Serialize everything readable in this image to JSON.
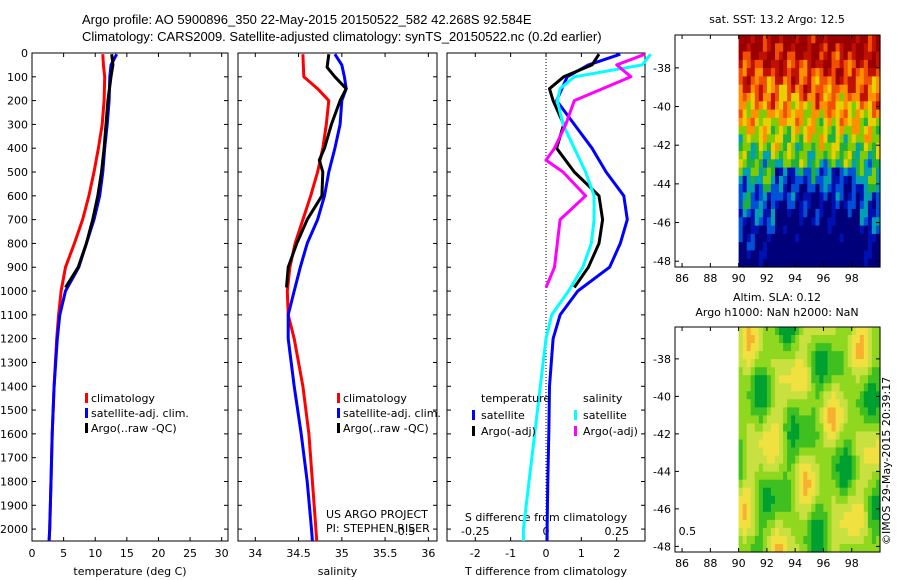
{
  "header": {
    "line1": "Argo profile: AO 5900896_350 22-May-2015 20150522_582 42.268S 92.584E",
    "line2": "Climatology: CARS2009. Satellite-adjusted climatology: synTS_20150522.nc (0.2d earlier)"
  },
  "colors": {
    "climatology": "#ff0000",
    "satellite": "#0000ff",
    "argo": "#000000",
    "argo_s": "#ff00ff",
    "satellite_s": "#00ffff"
  },
  "chart_data": [
    {
      "type": "line",
      "name": "temperature",
      "xlabel": "temperature (deg C)",
      "ylabel": "",
      "xlim": [
        0,
        31
      ],
      "ylim": [
        2050,
        0
      ],
      "xticks": [
        0,
        5,
        10,
        15,
        20,
        25,
        30
      ],
      "yticks": [
        0,
        100,
        200,
        300,
        400,
        500,
        600,
        700,
        800,
        900,
        1000,
        1100,
        1200,
        1300,
        1400,
        1500,
        1600,
        1700,
        1800,
        1900,
        2000
      ],
      "legend": [
        "climatology",
        "satellite-adj. clim.",
        "Argo(..raw -QC)"
      ],
      "series": [
        {
          "name": "climatology",
          "color": "red",
          "depth": [
            5,
            50,
            100,
            200,
            300,
            400,
            500,
            600,
            700,
            800,
            900,
            1000,
            1100,
            1200,
            1400,
            1600,
            1800,
            2000,
            2050
          ],
          "values": [
            11.2,
            11.3,
            11.5,
            11.4,
            11.1,
            10.5,
            9.8,
            9.0,
            8.0,
            6.7,
            5.3,
            4.6,
            4.2,
            3.9,
            3.5,
            3.2,
            3.0,
            2.8,
            2.7
          ]
        },
        {
          "name": "satellite-adj. clim.",
          "color": "blue",
          "depth": [
            5,
            50,
            100,
            200,
            300,
            400,
            500,
            600,
            700,
            800,
            900,
            1000,
            1100,
            1200,
            1400,
            1600,
            1800,
            2000,
            2050
          ],
          "values": [
            13.4,
            12.5,
            12.3,
            12.2,
            11.9,
            11.5,
            11.2,
            10.7,
            9.8,
            8.6,
            7.4,
            5.3,
            4.4,
            4.0,
            3.5,
            3.2,
            3.0,
            2.8,
            2.7
          ]
        },
        {
          "name": "Argo(..raw -QC)",
          "color": "black",
          "depth": [
            5,
            50,
            100,
            200,
            300,
            400,
            500,
            600,
            700,
            800,
            900,
            985
          ],
          "values": [
            12.6,
            12.8,
            12.5,
            12.0,
            11.7,
            11.4,
            11.0,
            10.4,
            9.6,
            8.6,
            7.3,
            5.3
          ]
        }
      ]
    },
    {
      "type": "line",
      "name": "salinity",
      "xlabel": "salinity",
      "ylabel": "",
      "xlim": [
        33.8,
        36.1
      ],
      "ylim": [
        2050,
        0
      ],
      "xticks": [
        34,
        34.5,
        35,
        35.5,
        36
      ],
      "legend": [
        "climatology",
        "satellite-adj. clim.",
        "Argo(..raw -QC)"
      ],
      "series": [
        {
          "name": "climatology",
          "color": "red",
          "depth": [
            5,
            100,
            150,
            200,
            300,
            400,
            500,
            600,
            700,
            800,
            900,
            1000,
            1100,
            1200,
            1400,
            1600,
            1800,
            2000,
            2050
          ],
          "values": [
            34.55,
            34.56,
            34.72,
            34.85,
            34.82,
            34.78,
            34.72,
            34.64,
            34.55,
            34.46,
            34.4,
            34.37,
            34.38,
            34.45,
            34.55,
            34.62,
            34.66,
            34.7,
            34.71
          ]
        },
        {
          "name": "satellite-adj. clim.",
          "color": "blue",
          "depth": [
            5,
            50,
            100,
            150,
            200,
            300,
            400,
            500,
            600,
            700,
            800,
            900,
            1000,
            1100,
            1200,
            1400,
            1600,
            1800,
            2000,
            2050
          ],
          "values": [
            34.92,
            35.0,
            35.03,
            35.05,
            35.0,
            34.98,
            34.92,
            34.85,
            34.8,
            34.72,
            34.6,
            34.52,
            34.45,
            34.38,
            34.38,
            34.45,
            34.53,
            34.6,
            34.65,
            34.66
          ]
        },
        {
          "name": "Argo(..raw -QC)",
          "color": "black",
          "depth": [
            5,
            60,
            100,
            150,
            200,
            300,
            400,
            450,
            500,
            600,
            700,
            800,
            900,
            985
          ],
          "values": [
            34.85,
            34.83,
            34.92,
            35.05,
            34.98,
            34.88,
            34.8,
            34.74,
            34.78,
            34.77,
            34.6,
            34.48,
            34.38,
            34.36
          ]
        }
      ]
    },
    {
      "type": "line",
      "name": "difference from climatology",
      "xlabel": "T difference from climatology",
      "x2label": "S difference from climatology",
      "xlim": [
        -2.8,
        2.8
      ],
      "ylim": [
        2050,
        0
      ],
      "xticks": [
        -2,
        -1,
        0,
        1,
        2
      ],
      "x2ticks": [
        -0.5,
        -0.25,
        0,
        0.25,
        0.5
      ],
      "legend_groups": [
        "temperature",
        "salinity"
      ],
      "legend": [
        "satellite",
        "Argo(-adj)",
        "satellite",
        "Argo(-adj)"
      ],
      "series": [
        {
          "name": "temperature satellite",
          "color": "blue",
          "depth": [
            5,
            50,
            100,
            200,
            300,
            400,
            500,
            600,
            700,
            800,
            900,
            1000,
            1100,
            1200,
            1400,
            1600,
            1800,
            2000,
            2050
          ],
          "values": [
            2.1,
            1.2,
            0.6,
            0.3,
            0.8,
            1.3,
            1.7,
            2.2,
            2.3,
            2.1,
            1.8,
            0.9,
            0.4,
            0.2,
            0.1,
            0.08,
            0.05,
            0.03,
            0.03
          ]
        },
        {
          "name": "temperature Argo(-adj)",
          "color": "black",
          "depth": [
            5,
            50,
            100,
            150,
            200,
            300,
            400,
            500,
            600,
            700,
            800,
            900,
            985
          ],
          "values": [
            1.5,
            1.3,
            0.5,
            0.1,
            0.2,
            0.5,
            0.3,
            0.8,
            1.5,
            1.6,
            1.5,
            1.2,
            0.8
          ]
        },
        {
          "name": "salinity satellite",
          "color": "cyan",
          "depth": [
            5,
            50,
            100,
            150,
            200,
            300,
            400,
            500,
            600,
            700,
            800,
            900,
            1000,
            1100,
            1200,
            1400,
            1600,
            1800,
            2000,
            2050
          ],
          "values": [
            0.37,
            0.34,
            0.1,
            0.05,
            0.04,
            0.06,
            0.1,
            0.14,
            0.17,
            0.17,
            0.16,
            0.13,
            0.08,
            0.02,
            0.0,
            -0.02,
            -0.04,
            -0.06,
            -0.08,
            -0.08
          ]
        },
        {
          "name": "salinity Argo(-adj)",
          "color": "magenta",
          "depth": [
            5,
            50,
            100,
            200,
            300,
            400,
            450,
            500,
            600,
            700,
            800,
            900,
            985
          ],
          "values": [
            0.35,
            0.25,
            0.3,
            0.1,
            0.07,
            0.03,
            0.0,
            0.06,
            0.14,
            0.05,
            0.04,
            0.03,
            0.0
          ]
        }
      ]
    },
    {
      "type": "heatmap",
      "name": "sat. SST",
      "title": "sat. SST: 13.2 Argo: 12.5",
      "xlim": [
        85.5,
        100
      ],
      "ylim": [
        -48.3,
        -36.3
      ],
      "xticks": [
        86,
        88,
        90,
        92,
        94,
        96,
        98
      ],
      "yticks": [
        -38,
        -40,
        -42,
        -44,
        -46,
        -48
      ]
    },
    {
      "type": "heatmap",
      "name": "Altim. SLA",
      "title": "Altim. SLA: 0.12",
      "subtitle": "Argo h1000: NaN h2000: NaN",
      "xlim": [
        85.5,
        100
      ],
      "ylim": [
        -48.3,
        -36.3
      ],
      "xticks": [
        86,
        88,
        90,
        92,
        94,
        96,
        98
      ],
      "yticks": [
        -38,
        -40,
        -42,
        -44,
        -46,
        -48
      ]
    }
  ],
  "credits": {
    "project": "US ARGO PROJECT",
    "pi": "PI: STEPHEN RISER",
    "stamp": "©IMOS 29-May-2015 20:39:17"
  }
}
